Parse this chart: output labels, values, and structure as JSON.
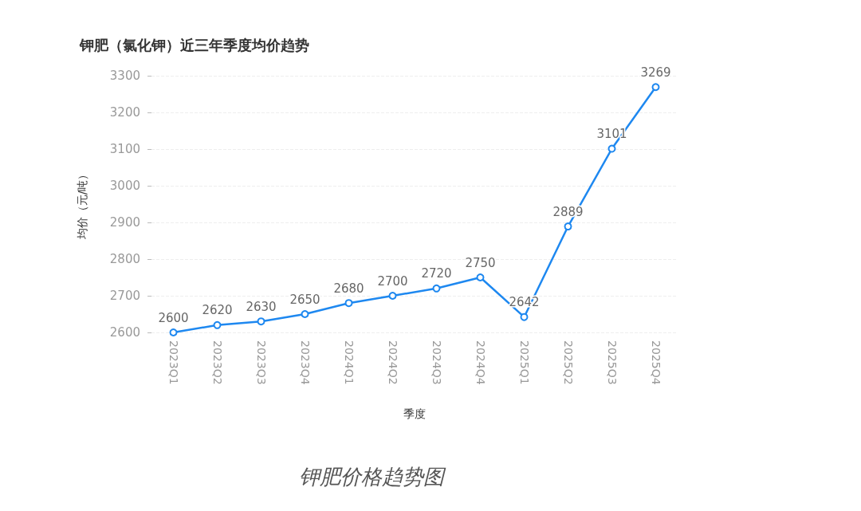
{
  "chart_data": {
    "type": "line",
    "title": "钾肥（氯化钾）近三年季度均价趋势",
    "xlabel": "季度",
    "ylabel": "均价（元/吨）",
    "categories": [
      "2023Q1",
      "2023Q2",
      "2023Q3",
      "2023Q4",
      "2024Q1",
      "2024Q2",
      "2024Q3",
      "2024Q4",
      "2025Q1",
      "2025Q2",
      "2025Q3",
      "2025Q4"
    ],
    "series": [
      {
        "color": "#1e88f0",
        "values": [
          2600,
          2620,
          2630,
          2650,
          2680,
          2700,
          2720,
          2750,
          2642,
          2889,
          3101,
          3269
        ]
      }
    ],
    "ylim": [
      2600,
      3300
    ],
    "yticks": [
      2600,
      2700,
      2800,
      2900,
      3000,
      3100,
      3200,
      3300
    ],
    "grid": "y",
    "marker": "circle",
    "line_style": "solid",
    "data_labels": true,
    "annotations": [
      "钾肥价格趋势图"
    ]
  }
}
